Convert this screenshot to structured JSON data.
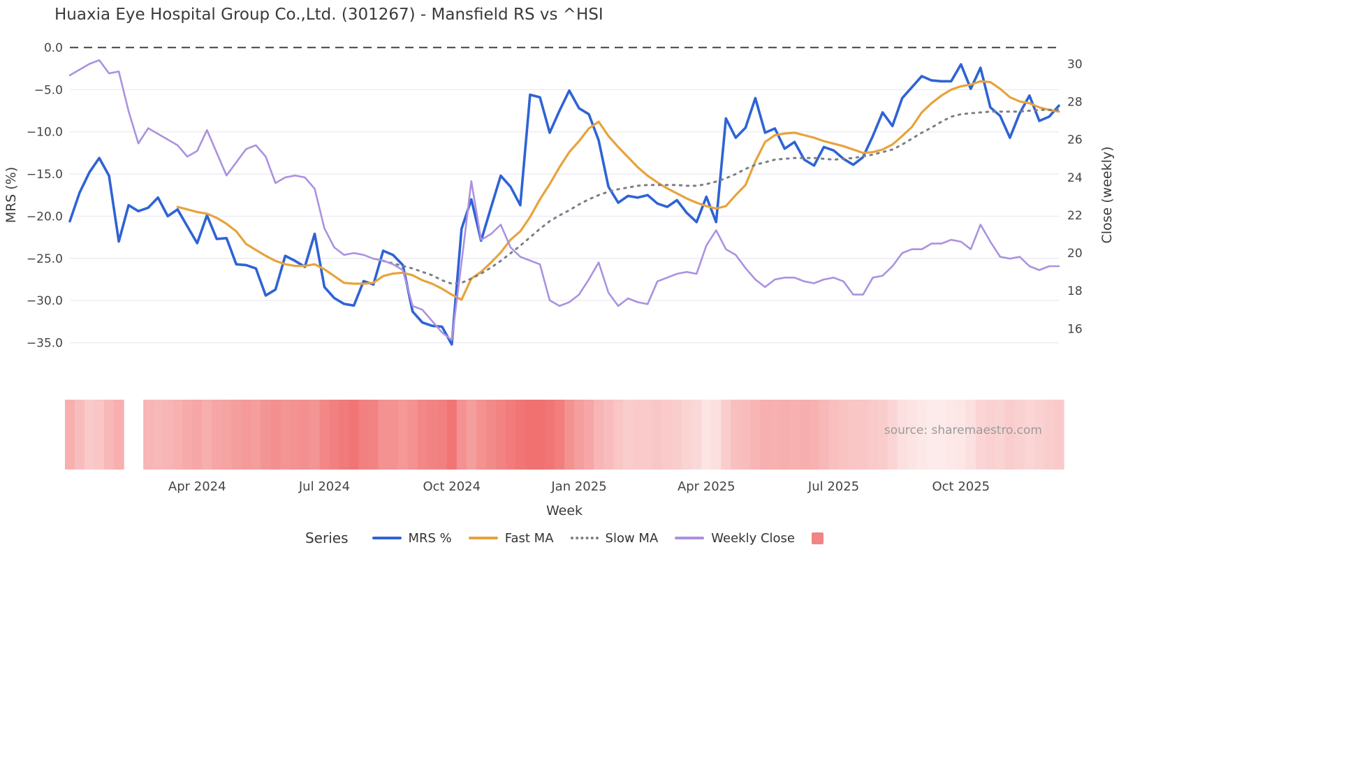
{
  "title": "Huaxia Eye Hospital Group Co.,Ltd. (301267) - Mansfield RS vs ^HSI",
  "axis": {
    "left_label": "MRS (%)",
    "right_label": "Close (weekly)",
    "x_label": "Week"
  },
  "source": "source: sharemaestro.com",
  "legend": {
    "title": "Series",
    "items": [
      {
        "label": "MRS %",
        "color": "#2e63d5",
        "style": "solid"
      },
      {
        "label": "Fast MA",
        "color": "#e7a33b",
        "style": "solid"
      },
      {
        "label": "Slow MA",
        "color": "#7a7f87",
        "style": "dotted"
      },
      {
        "label": "Weekly Close",
        "color": "#ab92e0",
        "style": "solid"
      }
    ],
    "swatch_square_color": "#f08585"
  },
  "chart_data": {
    "type": "line",
    "title": "Huaxia Eye Hospital Group Co.,Ltd. (301267) - Mansfield RS vs ^HSI",
    "xlabel": "Week",
    "ylabel_left": "MRS (%)",
    "ylabel_right": "Close (weekly)",
    "grid": true,
    "legend_position": "bottom",
    "zero_line": {
      "value": 0,
      "style": "dashed",
      "color": "#555555"
    },
    "x_axis": {
      "n_points": 102,
      "tick_labels": [
        "Apr 2024",
        "Jul 2024",
        "Oct 2024",
        "Jan 2025",
        "Apr 2025",
        "Jul 2025",
        "Oct 2025"
      ],
      "tick_indices": [
        13,
        26,
        39,
        52,
        65,
        78,
        91
      ]
    },
    "y_left": {
      "tick_labels": [
        "0.0",
        "−5.0",
        "−10.0",
        "−15.0",
        "−20.0",
        "−25.0",
        "−30.0",
        "−35.0"
      ],
      "tick_values": [
        0,
        -5,
        -10,
        -15,
        -20,
        -25,
        -30,
        -35
      ],
      "range": [
        1.5,
        -36.5
      ]
    },
    "y_right": {
      "tick_labels": [
        "30",
        "28",
        "26",
        "24",
        "22",
        "20",
        "18",
        "16"
      ],
      "tick_values": [
        30,
        28,
        26,
        24,
        22,
        20,
        18,
        16
      ],
      "range": [
        31,
        15
      ]
    },
    "series": [
      {
        "name": "MRS %",
        "axis": "left",
        "color": "#2e63d5",
        "style": "solid",
        "width": 3.6,
        "values": [
          -20.6,
          -17.2,
          -14.8,
          -13.1,
          -15.2,
          -23.0,
          -18.7,
          -19.4,
          -19.0,
          -17.8,
          -20.0,
          -19.2,
          -21.2,
          -23.2,
          -19.9,
          -22.7,
          -22.6,
          -25.7,
          -25.8,
          -26.2,
          -29.4,
          -28.7,
          -24.7,
          -25.3,
          -26.0,
          -22.1,
          -28.4,
          -29.7,
          -30.4,
          -30.6,
          -27.7,
          -28.1,
          -24.1,
          -24.6,
          -25.8,
          -31.3,
          -32.6,
          -33.0,
          -33.1,
          -35.2,
          -21.5,
          -18.0,
          -22.9,
          -19.0,
          -15.2,
          -16.5,
          -18.7,
          -5.6,
          -5.9,
          -10.1,
          -7.5,
          -5.1,
          -7.2,
          -7.9,
          -11.0,
          -16.5,
          -18.4,
          -17.6,
          -17.8,
          -17.5,
          -18.5,
          -18.9,
          -18.1,
          -19.6,
          -20.7,
          -17.7,
          -20.7,
          -8.4,
          -10.7,
          -9.5,
          -6.0,
          -10.1,
          -9.6,
          -12.0,
          -11.2,
          -13.3,
          -14.0,
          -11.8,
          -12.2,
          -13.2,
          -13.9,
          -13.0,
          -10.5,
          -7.7,
          -9.3,
          -6.0,
          -4.7,
          -3.4,
          -3.9,
          -4.0,
          -4.0,
          -2.0,
          -4.9,
          -2.4,
          -7.1,
          -8.1,
          -10.7,
          -7.8,
          -5.7,
          -8.7,
          -8.2,
          -6.9
        ]
      },
      {
        "name": "Fast MA",
        "axis": "left",
        "color": "#e7a33b",
        "style": "solid",
        "width": 3.2,
        "values": [
          null,
          null,
          null,
          null,
          null,
          null,
          null,
          null,
          null,
          null,
          null,
          -18.9,
          -19.2,
          -19.5,
          -19.7,
          -20.2,
          -20.9,
          -21.8,
          -23.3,
          -24.0,
          -24.7,
          -25.3,
          -25.7,
          -25.9,
          -25.9,
          -25.7,
          -26.3,
          -27.1,
          -27.9,
          -28.0,
          -28.0,
          -27.9,
          -27.1,
          -26.8,
          -26.7,
          -27.0,
          -27.6,
          -28.0,
          -28.6,
          -29.3,
          -29.9,
          -27.4,
          -26.6,
          -25.5,
          -24.3,
          -22.8,
          -21.8,
          -20.1,
          -18.0,
          -16.2,
          -14.2,
          -12.4,
          -11.1,
          -9.6,
          -8.8,
          -10.5,
          -11.8,
          -13.0,
          -14.2,
          -15.2,
          -16.0,
          -16.7,
          -17.3,
          -17.9,
          -18.4,
          -18.8,
          -19.1,
          -18.8,
          -17.5,
          -16.3,
          -13.5,
          -11.2,
          -10.4,
          -10.2,
          -10.1,
          -10.4,
          -10.7,
          -11.1,
          -11.4,
          -11.7,
          -12.1,
          -12.5,
          -12.4,
          -12.1,
          -11.5,
          -10.5,
          -9.4,
          -7.7,
          -6.6,
          -5.7,
          -5.0,
          -4.6,
          -4.4,
          -4.0,
          -4.1,
          -4.9,
          -5.9,
          -6.4,
          -6.6,
          -7.1,
          -7.4,
          -7.6
        ]
      },
      {
        "name": "Slow MA",
        "axis": "left",
        "color": "#7a7f87",
        "style": "dotted",
        "width": 3.0,
        "values": [
          null,
          null,
          null,
          null,
          null,
          null,
          null,
          null,
          null,
          null,
          null,
          null,
          null,
          null,
          null,
          null,
          null,
          null,
          null,
          null,
          null,
          null,
          null,
          null,
          null,
          null,
          null,
          null,
          null,
          null,
          null,
          null,
          -25.3,
          -25.6,
          -25.9,
          -26.2,
          -26.6,
          -27.0,
          -27.6,
          -28.0,
          -27.9,
          -27.4,
          -26.8,
          -26.1,
          -25.3,
          -24.4,
          -23.5,
          -22.5,
          -21.5,
          -20.6,
          -19.9,
          -19.3,
          -18.6,
          -18.0,
          -17.5,
          -17.1,
          -16.8,
          -16.6,
          -16.4,
          -16.3,
          -16.3,
          -16.3,
          -16.3,
          -16.4,
          -16.4,
          -16.2,
          -15.9,
          -15.5,
          -15.0,
          -14.4,
          -13.9,
          -13.6,
          -13.3,
          -13.2,
          -13.1,
          -13.1,
          -13.1,
          -13.2,
          -13.3,
          -13.2,
          -13.1,
          -12.9,
          -12.7,
          -12.4,
          -12.1,
          -11.5,
          -10.8,
          -10.1,
          -9.5,
          -8.8,
          -8.2,
          -7.9,
          -7.8,
          -7.7,
          -7.6,
          -7.6,
          -7.6,
          -7.6,
          -7.5,
          -7.4,
          -7.4,
          -7.4
        ]
      },
      {
        "name": "Weekly Close",
        "axis": "right",
        "color": "#ab92e0",
        "style": "solid",
        "width": 2.6,
        "values": [
          29.4,
          29.7,
          30.0,
          30.2,
          29.5,
          29.6,
          27.5,
          25.8,
          26.6,
          26.3,
          26.0,
          25.7,
          25.1,
          25.4,
          26.5,
          25.3,
          24.1,
          24.8,
          25.5,
          25.7,
          25.1,
          23.7,
          24.0,
          24.1,
          24.0,
          23.4,
          21.3,
          20.3,
          19.9,
          20.0,
          19.9,
          19.7,
          19.6,
          19.4,
          19.1,
          17.2,
          17.0,
          16.4,
          15.8,
          15.4,
          19.5,
          23.8,
          20.7,
          21.0,
          21.5,
          20.3,
          19.8,
          19.6,
          19.4,
          17.5,
          17.2,
          17.4,
          17.8,
          18.6,
          19.5,
          17.9,
          17.2,
          17.6,
          17.4,
          17.3,
          18.5,
          18.7,
          18.9,
          19.0,
          18.9,
          20.4,
          21.2,
          20.2,
          19.9,
          19.2,
          18.6,
          18.2,
          18.6,
          18.7,
          18.7,
          18.5,
          18.4,
          18.6,
          18.7,
          18.5,
          17.8,
          17.8,
          18.7,
          18.8,
          19.3,
          20.0,
          20.2,
          20.2,
          20.5,
          20.5,
          20.7,
          20.6,
          20.2,
          21.5,
          20.6,
          19.8,
          19.7,
          19.8,
          19.3,
          19.1,
          19.3,
          19.3
        ]
      }
    ],
    "heat_strip": {
      "description": "weekly intensity band under chart, white=0 to deep red=1",
      "color_max": "#ed4e4e",
      "values": [
        0.45,
        0.38,
        0.3,
        0.33,
        0.4,
        0.45,
        null,
        null,
        0.42,
        0.4,
        0.42,
        0.44,
        0.48,
        0.5,
        0.46,
        0.5,
        0.52,
        0.55,
        0.57,
        0.55,
        0.6,
        0.63,
        0.6,
        0.62,
        0.63,
        0.6,
        0.68,
        0.72,
        0.75,
        0.78,
        0.72,
        0.7,
        0.62,
        0.62,
        0.58,
        0.62,
        0.68,
        0.7,
        0.72,
        0.78,
        0.62,
        0.55,
        0.62,
        0.66,
        0.7,
        0.74,
        0.78,
        0.8,
        0.8,
        0.78,
        0.73,
        0.62,
        0.55,
        0.5,
        0.42,
        0.38,
        0.33,
        0.28,
        0.3,
        0.3,
        0.32,
        0.3,
        0.28,
        0.25,
        0.22,
        0.15,
        0.18,
        0.28,
        0.36,
        0.38,
        0.42,
        0.45,
        0.44,
        0.46,
        0.44,
        0.46,
        0.44,
        0.4,
        0.36,
        0.34,
        0.33,
        0.33,
        0.3,
        0.28,
        0.24,
        0.18,
        0.15,
        0.13,
        0.12,
        0.12,
        0.13,
        0.14,
        0.18,
        0.24,
        0.26,
        0.25,
        0.28,
        0.26,
        0.24,
        0.26,
        0.28,
        0.3
      ]
    },
    "source_annotation": "source: sharemaestro.com"
  }
}
